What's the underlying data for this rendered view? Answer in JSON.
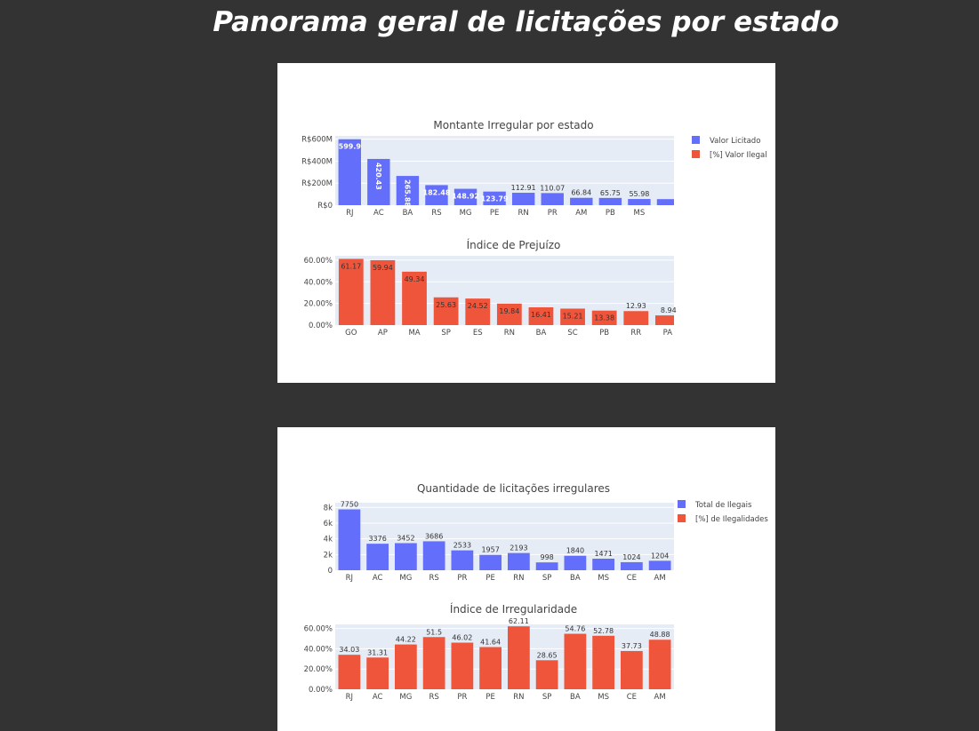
{
  "page": {
    "title": "Panorama geral de licitações por estado"
  },
  "colors": {
    "blue": "#636efa",
    "red": "#ef553b",
    "plot_bg": "#e5ecf6",
    "page_bg": "#333333"
  },
  "legends": [
    {
      "items": [
        {
          "label": "Valor Licitado",
          "color": "#636efa"
        },
        {
          "label": "[%] Valor Ilegal",
          "color": "#ef553b"
        }
      ]
    },
    {
      "items": [
        {
          "label": "Total de Ilegais",
          "color": "#636efa"
        },
        {
          "label": "[%] de Ilegalidades",
          "color": "#ef553b"
        }
      ]
    }
  ],
  "chart_data": [
    {
      "id": "montante",
      "type": "bar",
      "title": "Montante Irregular por estado",
      "color": "#636efa",
      "categories": [
        "RJ",
        "AC",
        "BA",
        "RS",
        "MG",
        "PE",
        "RN",
        "PR",
        "AM",
        "PB",
        "MS",
        ""
      ],
      "values": [
        599.9,
        420.43,
        265.88,
        182.48,
        148.92,
        123.79,
        112.91,
        110.07,
        66.84,
        65.75,
        55.98,
        55
      ],
      "labels": [
        "599.9",
        "420.43",
        "265.88",
        "182.48",
        "148.92",
        "123.79",
        "112.91",
        "110.07",
        "66.84",
        "65.75",
        "55.98",
        ""
      ],
      "ylim": [
        0,
        630
      ],
      "yticks": [
        0,
        200,
        400,
        600
      ],
      "ytick_labels": [
        "R$0",
        "R$200M",
        "R$400M",
        "R$600M"
      ],
      "label_positions": [
        "inside",
        "inside-vertical",
        "inside-vertical",
        "inside",
        "inside",
        "inside",
        "outside",
        "outside",
        "outside",
        "outside",
        "outside",
        "outside"
      ],
      "grid": true
    },
    {
      "id": "prejuizo",
      "type": "bar",
      "title": "Índice de Prejuízo",
      "color": "#ef553b",
      "categories": [
        "GO",
        "AP",
        "MA",
        "SP",
        "ES",
        "RN",
        "BA",
        "SC",
        "PB",
        "RR",
        "PA"
      ],
      "values": [
        61.17,
        59.94,
        49.34,
        25.63,
        24.52,
        19.84,
        16.41,
        15.21,
        13.38,
        12.93,
        8.94
      ],
      "labels": [
        "61.17",
        "59.94",
        "49.34",
        "25.63",
        "24.52",
        "19.84",
        "16.41",
        "15.21",
        "13.38",
        "12.93",
        "8.94"
      ],
      "ylim": [
        0,
        64
      ],
      "yticks": [
        0,
        20,
        40,
        60
      ],
      "ytick_labels": [
        "0.00%",
        "20.00%",
        "40.00%",
        "60.00%"
      ],
      "label_positions": [
        "inside",
        "inside",
        "inside",
        "inside",
        "inside",
        "inside",
        "inside",
        "inside",
        "inside",
        "outside",
        "outside"
      ],
      "grid": true
    },
    {
      "id": "quantidade",
      "type": "bar",
      "title": "Quantidade de licitações irregulares",
      "color": "#636efa",
      "categories": [
        "RJ",
        "AC",
        "MG",
        "RS",
        "PR",
        "PE",
        "RN",
        "SP",
        "BA",
        "MS",
        "CE",
        "AM"
      ],
      "values": [
        7750,
        3376,
        3452,
        3686,
        2533,
        1957,
        2193,
        998,
        1840,
        1471,
        1024,
        1204
      ],
      "labels": [
        "7750",
        "3376",
        "3452",
        "3686",
        "2533",
        "1957",
        "2193",
        "998",
        "1840",
        "1471",
        "1024",
        "1204"
      ],
      "ylim": [
        0,
        8600
      ],
      "yticks": [
        0,
        2000,
        4000,
        6000,
        8000
      ],
      "ytick_labels": [
        "0",
        "2k",
        "4k",
        "6k",
        "8k"
      ],
      "label_positions": [
        "outside",
        "outside",
        "outside",
        "outside",
        "outside",
        "outside",
        "outside",
        "outside",
        "outside",
        "outside",
        "outside",
        "outside"
      ],
      "grid": true
    },
    {
      "id": "irregularidade",
      "type": "bar",
      "title": "Índice de Irregularidade",
      "color": "#ef553b",
      "categories": [
        "RJ",
        "AC",
        "MG",
        "RS",
        "PR",
        "PE",
        "RN",
        "SP",
        "BA",
        "MS",
        "CE",
        "AM"
      ],
      "values": [
        34.03,
        31.31,
        44.22,
        51.5,
        46.02,
        41.64,
        62.11,
        28.65,
        54.76,
        52.78,
        37.73,
        48.88
      ],
      "labels": [
        "34.03",
        "31.31",
        "44.22",
        "51.5",
        "46.02",
        "41.64",
        "62.11",
        "28.65",
        "54.76",
        "52.78",
        "37.73",
        "48.88"
      ],
      "ylim": [
        0,
        64
      ],
      "yticks": [
        0,
        20,
        40,
        60
      ],
      "ytick_labels": [
        "0.00%",
        "20.00%",
        "40.00%",
        "60.00%"
      ],
      "label_positions": [
        "outside",
        "outside",
        "outside",
        "outside",
        "outside",
        "outside",
        "outside",
        "outside",
        "outside",
        "outside",
        "outside",
        "outside"
      ],
      "grid": true
    }
  ]
}
